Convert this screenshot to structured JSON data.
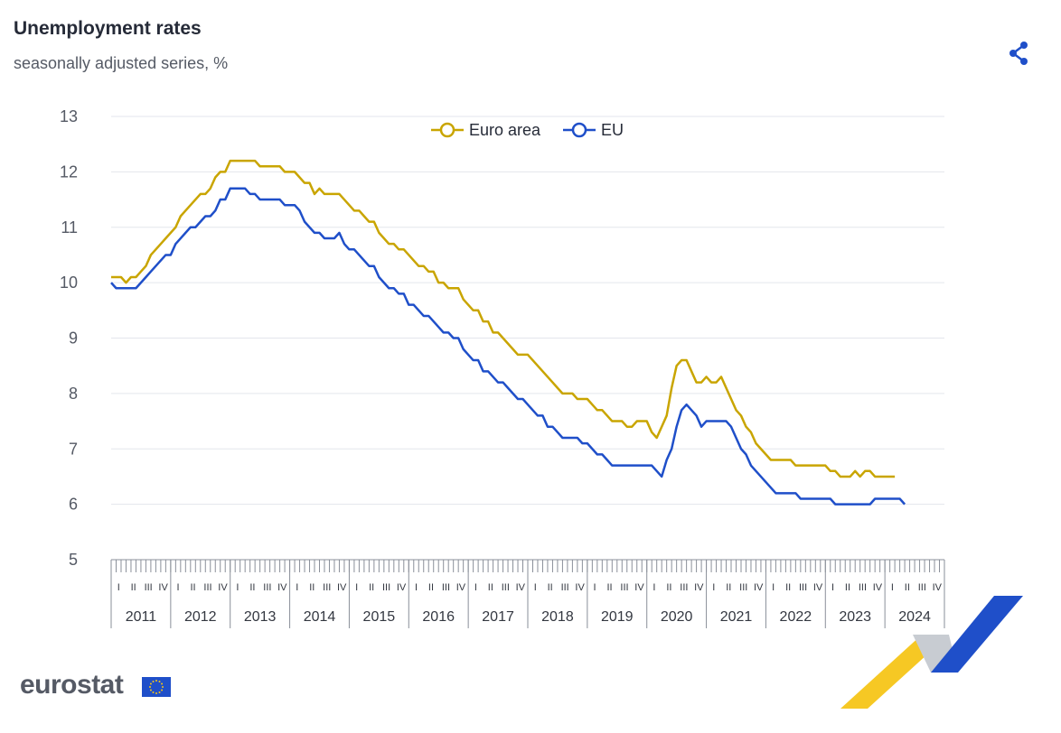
{
  "header": {
    "title": "Unemployment rates",
    "subtitle": "seasonally adjusted series, %"
  },
  "brand": {
    "name": "eurostat"
  },
  "icons": {
    "share": "share-icon"
  },
  "colors": {
    "euro_area": "#c9a500",
    "eu": "#1f4fc9",
    "grid": "#e3e6ec",
    "text": "#555a65"
  },
  "chart_data": {
    "type": "line",
    "title": "Unemployment rates",
    "subtitle": "seasonally adjusted series, %",
    "ylim": [
      5,
      13
    ],
    "yticks": [
      "5",
      "6",
      "7",
      "8",
      "9",
      "10",
      "11",
      "12",
      "13"
    ],
    "grid": true,
    "legend_position": "top-center",
    "x_start": "2011-01",
    "frequency": "monthly",
    "quarter_labels": [
      "I",
      "II",
      "III",
      "IV"
    ],
    "years": [
      "2011",
      "2012",
      "2013",
      "2014",
      "2015",
      "2016",
      "2017",
      "2018",
      "2019",
      "2020",
      "2021",
      "2022",
      "2023",
      "2024"
    ],
    "series": [
      {
        "name": "Euro area",
        "values": [
          10.1,
          10.1,
          10.1,
          10.0,
          10.1,
          10.1,
          10.2,
          10.3,
          10.5,
          10.6,
          10.7,
          10.8,
          10.9,
          11.0,
          11.2,
          11.3,
          11.4,
          11.5,
          11.6,
          11.6,
          11.7,
          11.9,
          12.0,
          12.0,
          12.2,
          12.2,
          12.2,
          12.2,
          12.2,
          12.2,
          12.1,
          12.1,
          12.1,
          12.1,
          12.1,
          12.0,
          12.0,
          12.0,
          11.9,
          11.8,
          11.8,
          11.6,
          11.7,
          11.6,
          11.6,
          11.6,
          11.6,
          11.5,
          11.4,
          11.3,
          11.3,
          11.2,
          11.1,
          11.1,
          10.9,
          10.8,
          10.7,
          10.7,
          10.6,
          10.6,
          10.5,
          10.4,
          10.3,
          10.3,
          10.2,
          10.2,
          10.0,
          10.0,
          9.9,
          9.9,
          9.9,
          9.7,
          9.6,
          9.5,
          9.5,
          9.3,
          9.3,
          9.1,
          9.1,
          9.0,
          8.9,
          8.8,
          8.7,
          8.7,
          8.7,
          8.6,
          8.5,
          8.4,
          8.3,
          8.2,
          8.1,
          8.0,
          8.0,
          8.0,
          7.9,
          7.9,
          7.9,
          7.8,
          7.7,
          7.7,
          7.6,
          7.5,
          7.5,
          7.5,
          7.4,
          7.4,
          7.5,
          7.5,
          7.5,
          7.3,
          7.2,
          7.4,
          7.6,
          8.1,
          8.5,
          8.6,
          8.6,
          8.4,
          8.2,
          8.2,
          8.3,
          8.2,
          8.2,
          8.3,
          8.1,
          7.9,
          7.7,
          7.6,
          7.4,
          7.3,
          7.1,
          7.0,
          6.9,
          6.8,
          6.8,
          6.8,
          6.8,
          6.8,
          6.7,
          6.7,
          6.7,
          6.7,
          6.7,
          6.7,
          6.7,
          6.6,
          6.6,
          6.5,
          6.5,
          6.5,
          6.6,
          6.5,
          6.6,
          6.6,
          6.5,
          6.5,
          6.5,
          6.5,
          6.5
        ]
      },
      {
        "name": "EU",
        "values": [
          10.0,
          9.9,
          9.9,
          9.9,
          9.9,
          9.9,
          10.0,
          10.1,
          10.2,
          10.3,
          10.4,
          10.5,
          10.5,
          10.7,
          10.8,
          10.9,
          11.0,
          11.0,
          11.1,
          11.2,
          11.2,
          11.3,
          11.5,
          11.5,
          11.7,
          11.7,
          11.7,
          11.7,
          11.6,
          11.6,
          11.5,
          11.5,
          11.5,
          11.5,
          11.5,
          11.4,
          11.4,
          11.4,
          11.3,
          11.1,
          11.0,
          10.9,
          10.9,
          10.8,
          10.8,
          10.8,
          10.9,
          10.7,
          10.6,
          10.6,
          10.5,
          10.4,
          10.3,
          10.3,
          10.1,
          10.0,
          9.9,
          9.9,
          9.8,
          9.8,
          9.6,
          9.6,
          9.5,
          9.4,
          9.4,
          9.3,
          9.2,
          9.1,
          9.1,
          9.0,
          9.0,
          8.8,
          8.7,
          8.6,
          8.6,
          8.4,
          8.4,
          8.3,
          8.2,
          8.2,
          8.1,
          8.0,
          7.9,
          7.9,
          7.8,
          7.7,
          7.6,
          7.6,
          7.4,
          7.4,
          7.3,
          7.2,
          7.2,
          7.2,
          7.2,
          7.1,
          7.1,
          7.0,
          6.9,
          6.9,
          6.8,
          6.7,
          6.7,
          6.7,
          6.7,
          6.7,
          6.7,
          6.7,
          6.7,
          6.7,
          6.6,
          6.5,
          6.8,
          7.0,
          7.4,
          7.7,
          7.8,
          7.7,
          7.6,
          7.4,
          7.5,
          7.5,
          7.5,
          7.5,
          7.5,
          7.4,
          7.2,
          7.0,
          6.9,
          6.7,
          6.6,
          6.5,
          6.4,
          6.3,
          6.2,
          6.2,
          6.2,
          6.2,
          6.2,
          6.1,
          6.1,
          6.1,
          6.1,
          6.1,
          6.1,
          6.1,
          6.0,
          6.0,
          6.0,
          6.0,
          6.0,
          6.0,
          6.0,
          6.0,
          6.1,
          6.1,
          6.1,
          6.1,
          6.1,
          6.1,
          6.0
        ]
      }
    ]
  }
}
